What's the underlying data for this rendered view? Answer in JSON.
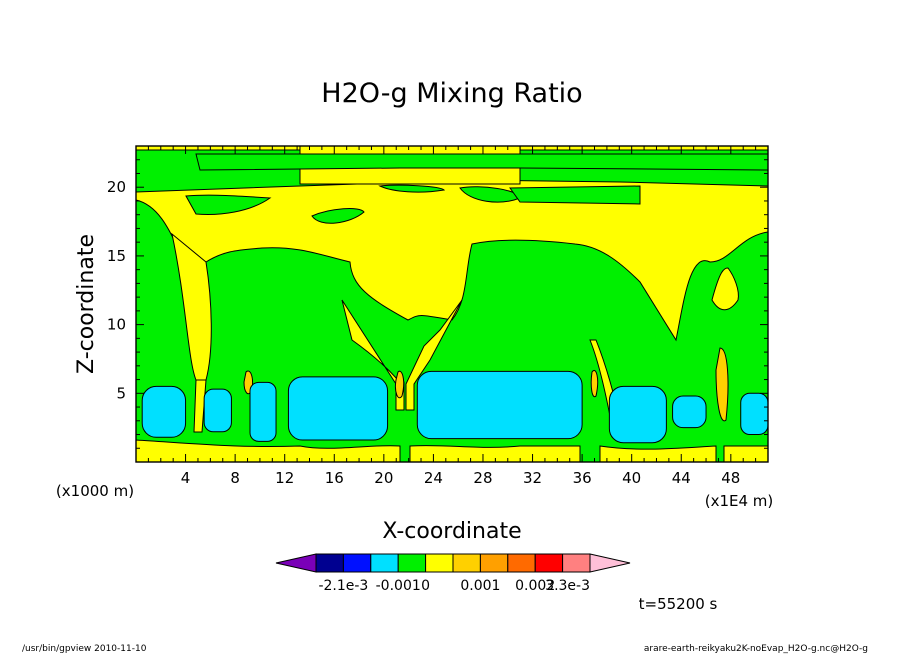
{
  "chart_data": {
    "type": "heatmap",
    "title": "H2O-g Mixing Ratio",
    "xlabel": "X-coordinate",
    "ylabel": "Z-coordinate",
    "x_unit_left": "(x1000 m)",
    "x_unit_right": "(x1E4 m)",
    "xlim": [
      0,
      51
    ],
    "ylim": [
      0,
      23
    ],
    "x_ticks": [
      4,
      8,
      12,
      16,
      20,
      24,
      28,
      32,
      36,
      40,
      44,
      48
    ],
    "y_ticks": [
      5,
      10,
      15,
      20
    ],
    "grid": false,
    "colorbar": {
      "colors": [
        "#7a00b8",
        "#000090",
        "#0010ff",
        "#00e0ff",
        "#00f000",
        "#ffff00",
        "#ffd000",
        "#ffa000",
        "#ff6a00",
        "#ff0000",
        "#ff8080",
        "#ffc0d8"
      ],
      "labels": [
        "-2.1e-3",
        "-0.001",
        "0",
        "0.001",
        "0.002",
        "3.3e-3"
      ],
      "levels": [
        -0.0021,
        -0.001,
        0,
        0.001,
        0.002,
        0.0033
      ]
    },
    "time_label": "t=55200 s",
    "regions": [
      {
        "band": "cyan",
        "x": [
          0.5,
          4
        ],
        "z": [
          1.8,
          5.5
        ]
      },
      {
        "band": "cyan",
        "x": [
          5.5,
          7.7
        ],
        "z": [
          2.2,
          5.3
        ]
      },
      {
        "band": "cyan",
        "x": [
          9.2,
          11.3
        ],
        "z": [
          1.5,
          5.8
        ]
      },
      {
        "band": "cyan",
        "x": [
          12.3,
          20.3
        ],
        "z": [
          1.6,
          6.2
        ]
      },
      {
        "band": "cyan",
        "x": [
          22.7,
          36
        ],
        "z": [
          1.7,
          6.6
        ]
      },
      {
        "band": "cyan",
        "x": [
          38.2,
          42.8
        ],
        "z": [
          1.4,
          5.5
        ]
      },
      {
        "band": "cyan",
        "x": [
          43.3,
          46
        ],
        "z": [
          2.5,
          4.8
        ]
      },
      {
        "band": "cyan",
        "x": [
          48.8,
          51
        ],
        "z": [
          2.0,
          5.0
        ]
      }
    ]
  },
  "footer": {
    "left": "/usr/bin/gpview   2010-11-10",
    "right": "arare-earth-reikyaku2K-noEvap_H2O-g.nc@H2O-g"
  }
}
